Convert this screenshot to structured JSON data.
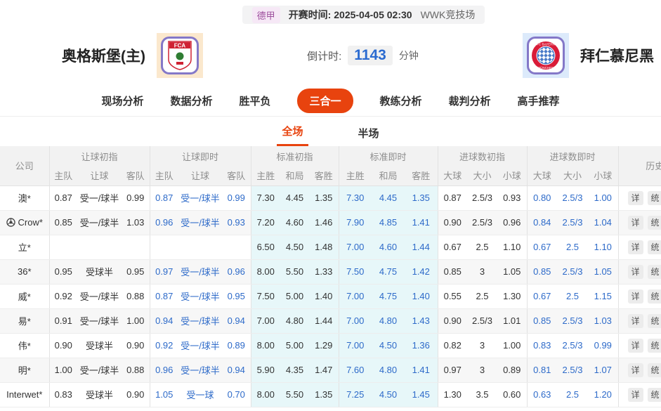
{
  "info_bar": {
    "league": "德甲",
    "kickoff_label": "开赛时间:",
    "kickoff_time": "2025-04-05 02:30",
    "venue": "WWK竞技场"
  },
  "match": {
    "home_name": "奥格斯堡(主)",
    "home_logo_text": "FCA",
    "away_name": "拜仁慕尼黑",
    "countdown_label": "倒计时:",
    "countdown_value": "1143",
    "countdown_unit": "分钟"
  },
  "nav": {
    "items": [
      "现场分析",
      "数据分析",
      "胜平负",
      "三合一",
      "教练分析",
      "裁判分析",
      "高手推荐"
    ],
    "active": "三合一"
  },
  "subtabs": {
    "items": [
      "全场",
      "半场"
    ],
    "active": "全场"
  },
  "odds_table": {
    "company_header": "公司",
    "history_header": "历史同赔",
    "action_labels": [
      "详",
      "统"
    ],
    "groups": [
      {
        "label": "让球初指",
        "cols": [
          "主队",
          "让球",
          "客队"
        ]
      },
      {
        "label": "让球即时",
        "cols": [
          "主队",
          "让球",
          "客队"
        ]
      },
      {
        "label": "标准初指",
        "cols": [
          "主胜",
          "和局",
          "客胜"
        ]
      },
      {
        "label": "标准即时",
        "cols": [
          "主胜",
          "和局",
          "客胜"
        ]
      },
      {
        "label": "进球数初指",
        "cols": [
          "大球",
          "大小",
          "小球"
        ]
      },
      {
        "label": "进球数即时",
        "cols": [
          "大球",
          "大小",
          "小球"
        ]
      }
    ],
    "rows": [
      {
        "company": "澳*",
        "icon": false,
        "cells": [
          [
            "0.87",
            "受一/球半",
            "0.99"
          ],
          [
            "0.87",
            "受一/球半",
            "0.99"
          ],
          [
            "7.30",
            "4.45",
            "1.35"
          ],
          [
            "7.30",
            "4.45",
            "1.35"
          ],
          [
            "0.87",
            "2.5/3",
            "0.93"
          ],
          [
            "0.80",
            "2.5/3",
            "1.00"
          ]
        ]
      },
      {
        "company": "Crow*",
        "icon": true,
        "cells": [
          [
            "0.85",
            "受一/球半",
            "1.03"
          ],
          [
            "0.96",
            "受一/球半",
            "0.93"
          ],
          [
            "7.20",
            "4.60",
            "1.46"
          ],
          [
            "7.90",
            "4.85",
            "1.41"
          ],
          [
            "0.90",
            "2.5/3",
            "0.96"
          ],
          [
            "0.84",
            "2.5/3",
            "1.04"
          ]
        ]
      },
      {
        "company": "立*",
        "icon": false,
        "cells": [
          [
            "",
            "",
            ""
          ],
          [
            "",
            "",
            ""
          ],
          [
            "6.50",
            "4.50",
            "1.48"
          ],
          [
            "7.00",
            "4.60",
            "1.44"
          ],
          [
            "0.67",
            "2.5",
            "1.10"
          ],
          [
            "0.67",
            "2.5",
            "1.10"
          ]
        ]
      },
      {
        "company": "36*",
        "icon": false,
        "cells": [
          [
            "0.95",
            "受球半",
            "0.95"
          ],
          [
            "0.97",
            "受一/球半",
            "0.96"
          ],
          [
            "8.00",
            "5.50",
            "1.33"
          ],
          [
            "7.50",
            "4.75",
            "1.42"
          ],
          [
            "0.85",
            "3",
            "1.05"
          ],
          [
            "0.85",
            "2.5/3",
            "1.05"
          ]
        ]
      },
      {
        "company": "威*",
        "icon": false,
        "cells": [
          [
            "0.92",
            "受一/球半",
            "0.88"
          ],
          [
            "0.87",
            "受一/球半",
            "0.95"
          ],
          [
            "7.50",
            "5.00",
            "1.40"
          ],
          [
            "7.00",
            "4.75",
            "1.40"
          ],
          [
            "0.55",
            "2.5",
            "1.30"
          ],
          [
            "0.67",
            "2.5",
            "1.15"
          ]
        ]
      },
      {
        "company": "易*",
        "icon": false,
        "cells": [
          [
            "0.91",
            "受一/球半",
            "1.00"
          ],
          [
            "0.94",
            "受一/球半",
            "0.94"
          ],
          [
            "7.00",
            "4.80",
            "1.44"
          ],
          [
            "7.00",
            "4.80",
            "1.43"
          ],
          [
            "0.90",
            "2.5/3",
            "1.01"
          ],
          [
            "0.85",
            "2.5/3",
            "1.03"
          ]
        ]
      },
      {
        "company": "伟*",
        "icon": false,
        "cells": [
          [
            "0.90",
            "受球半",
            "0.90"
          ],
          [
            "0.92",
            "受一/球半",
            "0.89"
          ],
          [
            "8.00",
            "5.00",
            "1.29"
          ],
          [
            "7.00",
            "4.50",
            "1.36"
          ],
          [
            "0.82",
            "3",
            "1.00"
          ],
          [
            "0.83",
            "2.5/3",
            "0.99"
          ]
        ]
      },
      {
        "company": "明*",
        "icon": false,
        "cells": [
          [
            "1.00",
            "受一/球半",
            "0.88"
          ],
          [
            "0.96",
            "受一/球半",
            "0.94"
          ],
          [
            "5.90",
            "4.35",
            "1.47"
          ],
          [
            "7.60",
            "4.80",
            "1.41"
          ],
          [
            "0.97",
            "3",
            "0.89"
          ],
          [
            "0.81",
            "2.5/3",
            "1.07"
          ]
        ]
      },
      {
        "company": "Interwet*",
        "icon": false,
        "cells": [
          [
            "0.83",
            "受球半",
            "0.90"
          ],
          [
            "1.05",
            "受一球",
            "0.70"
          ],
          [
            "8.00",
            "5.50",
            "1.35"
          ],
          [
            "7.25",
            "4.50",
            "1.45"
          ],
          [
            "1.30",
            "3.5",
            "0.60"
          ],
          [
            "0.63",
            "2.5",
            "1.20"
          ]
        ]
      }
    ]
  },
  "colors": {
    "accent_orange": "#e8430e",
    "live_odds_blue": "#2d6ac9",
    "standard_cols_bg": "#e7f7f9",
    "league_badge_purple": "#9d4f9d",
    "countdown_blue": "#2b6bd0"
  }
}
